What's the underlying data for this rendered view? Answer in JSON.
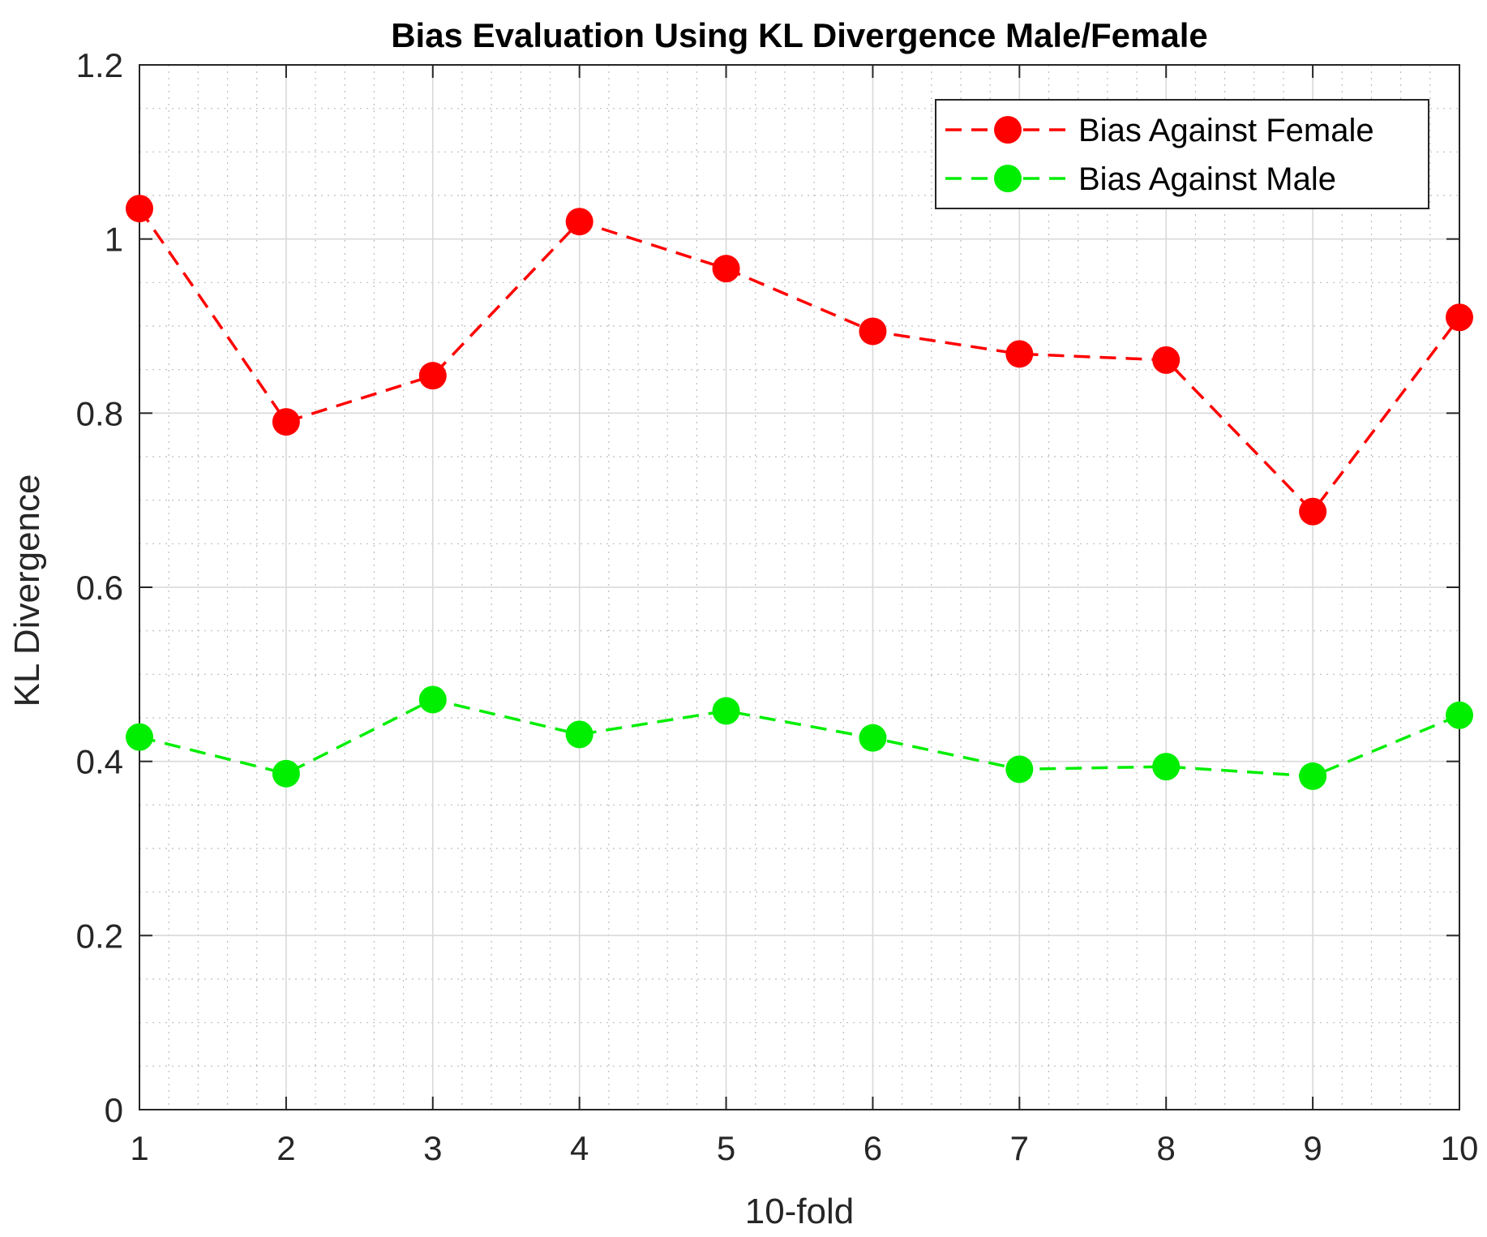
{
  "chart_data": {
    "type": "line",
    "title": "Bias Evaluation Using KL Divergence Male/Female",
    "xlabel": "10-fold",
    "ylabel": "KL Divergence",
    "x": [
      1,
      2,
      3,
      4,
      5,
      6,
      7,
      8,
      9,
      10
    ],
    "xlim": [
      1,
      10
    ],
    "ylim": [
      0,
      1.2
    ],
    "xticks": [
      1,
      2,
      3,
      4,
      5,
      6,
      7,
      8,
      9,
      10
    ],
    "xtick_labels": [
      "1",
      "2",
      "3",
      "4",
      "5",
      "6",
      "7",
      "8",
      "9",
      "10"
    ],
    "yticks": [
      0,
      0.2,
      0.4,
      0.6,
      0.8,
      1,
      1.2
    ],
    "ytick_labels": [
      "0",
      "0.2",
      "0.4",
      "0.6",
      "0.8",
      "1",
      "1.2"
    ],
    "grid": true,
    "minor_grid": true,
    "legend_position": "top-right",
    "series": [
      {
        "name": "Bias Against Female",
        "color": "#ff0000",
        "line_style": "dashed",
        "marker": "circle",
        "values": [
          1.035,
          0.79,
          0.843,
          1.02,
          0.966,
          0.894,
          0.868,
          0.861,
          0.687,
          0.91
        ]
      },
      {
        "name": "Bias Against Male",
        "color": "#00ee00",
        "line_style": "dashed",
        "marker": "circle",
        "values": [
          0.428,
          0.386,
          0.471,
          0.431,
          0.458,
          0.427,
          0.391,
          0.394,
          0.383,
          0.453
        ]
      }
    ]
  }
}
